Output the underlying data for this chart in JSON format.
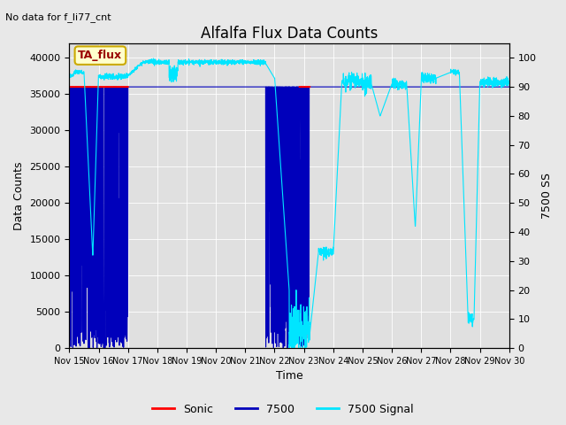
{
  "title": "Alfalfa Flux Data Counts",
  "subtitle": "No data for f_li77_cnt",
  "xlabel": "Time",
  "ylabel_left": "Data Counts",
  "ylabel_right": "7500 SS",
  "annotation": "TA_flux",
  "x_tick_labels": [
    "Nov 15",
    "Nov 16",
    "Nov 17",
    "Nov 18",
    "Nov 19",
    "Nov 20",
    "Nov 21",
    "Nov 22",
    "Nov 23",
    "Nov 24",
    "Nov 25",
    "Nov 26",
    "Nov 27",
    "Nov 28",
    "Nov 29",
    "Nov 30"
  ],
  "ylim_left": [
    0,
    42000
  ],
  "ylim_right": [
    0,
    105
  ],
  "bg_color": "#e8e8e8",
  "plot_bg_color": "#e0e0e0",
  "sonic_color": "#ff0000",
  "flux7500_color": "#0000bb",
  "signal_color": "#00e5ff",
  "legend_entries": [
    "Sonic",
    "7500",
    "7500 Signal"
  ],
  "sonic_level": 36000,
  "flux7500_level": 36000,
  "num_days": 16,
  "figsize": [
    6.4,
    4.8
  ],
  "dpi": 100
}
